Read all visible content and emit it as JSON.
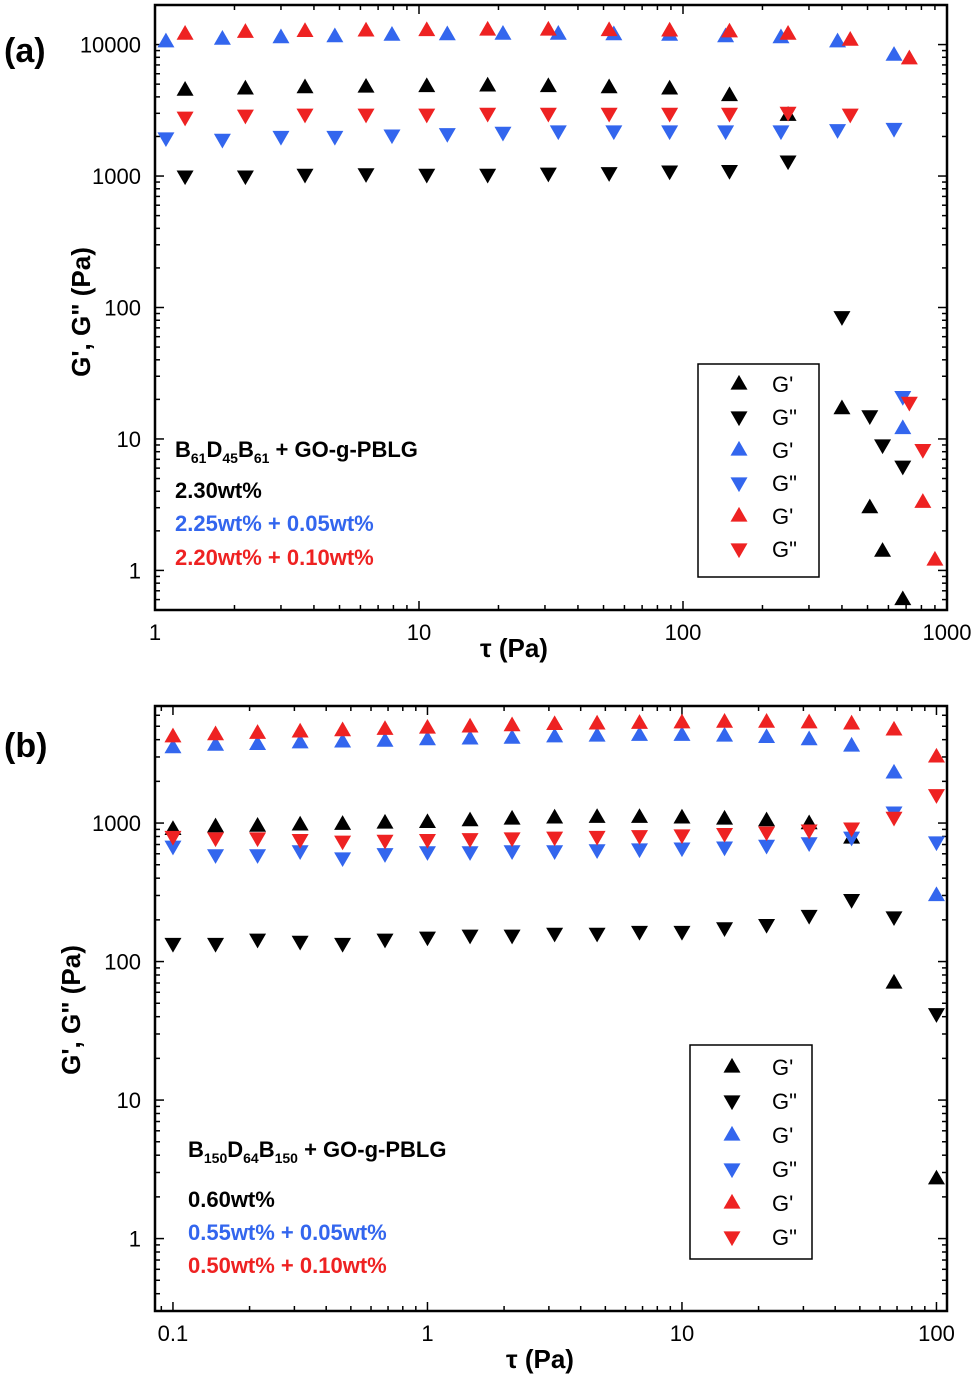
{
  "chart_data": [
    {
      "panel_label": "(a)",
      "type": "scatter",
      "xlabel": "τ (Pa)",
      "ylabel": "G', G\" (Pa)",
      "xscale": "log",
      "yscale": "log",
      "xlim": [
        1,
        1000
      ],
      "ylim": [
        0.5,
        20000
      ],
      "xticks": [
        1,
        10,
        100,
        1000
      ],
      "xtick_labels": [
        "1",
        "10",
        "100",
        "1000"
      ],
      "yticks": [
        1,
        10,
        100,
        1000,
        10000
      ],
      "ytick_labels": [
        "1",
        "10",
        "100",
        "1000",
        "10000"
      ],
      "annotation": {
        "title": "B61D45B61 + GO-g-PBLG",
        "title_parts": [
          {
            "t": "B",
            "sub": false
          },
          {
            "t": "61",
            "sub": true
          },
          {
            "t": "D",
            "sub": false
          },
          {
            "t": "45",
            "sub": true
          },
          {
            "t": "B",
            "sub": false
          },
          {
            "t": "61",
            "sub": true
          },
          {
            "t": " + GO-g-PBLG",
            "sub": false
          }
        ],
        "lines": [
          {
            "text": "2.30wt%",
            "color": "#000000"
          },
          {
            "text": "2.25wt% + 0.05wt%",
            "color": "#3366ee"
          },
          {
            "text": "2.20wt% + 0.10wt%",
            "color": "#ee2222"
          }
        ]
      },
      "legend": {
        "position": "lower-right",
        "entries": [
          {
            "label": "G'",
            "marker": "up",
            "color": "#000000"
          },
          {
            "label": "G\"",
            "marker": "down",
            "color": "#000000"
          },
          {
            "label": "G'",
            "marker": "up",
            "color": "#3366ee"
          },
          {
            "label": "G\"",
            "marker": "down",
            "color": "#3366ee"
          },
          {
            "label": "G'",
            "marker": "up",
            "color": "#ee2222"
          },
          {
            "label": "G\"",
            "marker": "down",
            "color": "#ee2222"
          }
        ]
      },
      "series": [
        {
          "modulus": "G'",
          "marker": "up",
          "color": "#000000",
          "x": [
            1.3,
            2.2,
            3.7,
            6.3,
            10.7,
            18.2,
            30.9,
            52.5,
            89,
            150,
            250,
            400,
            510,
            570,
            680
          ],
          "y": [
            4500,
            4600,
            4700,
            4750,
            4800,
            4850,
            4800,
            4700,
            4600,
            4100,
            2900,
            17,
            3,
            1.4,
            0.6
          ]
        },
        {
          "modulus": "G\"",
          "marker": "down",
          "color": "#000000",
          "x": [
            1.3,
            2.2,
            3.7,
            6.3,
            10.7,
            18.2,
            30.9,
            52.5,
            89,
            150,
            250,
            400,
            510,
            570,
            680
          ],
          "y": [
            1000,
            1000,
            1030,
            1040,
            1030,
            1030,
            1050,
            1060,
            1090,
            1100,
            1300,
            85,
            15,
            9,
            6.2
          ]
        },
        {
          "modulus": "G'",
          "marker": "up",
          "color": "#3366ee",
          "x": [
            1.1,
            1.8,
            3.0,
            4.8,
            7.9,
            12.8,
            20.8,
            33.7,
            54.7,
            89,
            145,
            235,
            385,
            630,
            680
          ],
          "y": [
            10500,
            11000,
            11300,
            11500,
            11800,
            11900,
            12000,
            12000,
            11900,
            11800,
            11500,
            11300,
            10500,
            8300,
            12
          ]
        },
        {
          "modulus": "G\"",
          "marker": "down",
          "color": "#3366ee",
          "x": [
            1.1,
            1.8,
            3.0,
            4.8,
            7.9,
            12.8,
            20.8,
            33.7,
            54.7,
            89,
            145,
            235,
            385,
            630,
            680
          ],
          "y": [
            1950,
            1900,
            2000,
            2000,
            2050,
            2100,
            2150,
            2200,
            2200,
            2200,
            2200,
            2200,
            2250,
            2300,
            21
          ]
        },
        {
          "modulus": "G'",
          "marker": "up",
          "color": "#ee2222",
          "x": [
            1.3,
            2.2,
            3.7,
            6.3,
            10.7,
            18.2,
            30.9,
            52.5,
            89,
            150,
            250,
            430,
            720,
            810,
            900
          ],
          "y": [
            12000,
            12400,
            12600,
            12700,
            12800,
            12900,
            12900,
            12800,
            12700,
            12500,
            12000,
            10800,
            7800,
            3.3,
            1.2
          ]
        },
        {
          "modulus": "G\"",
          "marker": "down",
          "color": "#ee2222",
          "x": [
            1.3,
            2.2,
            3.7,
            6.3,
            10.7,
            18.2,
            30.9,
            52.5,
            89,
            150,
            250,
            430,
            720,
            810
          ],
          "y": [
            2800,
            2900,
            2950,
            2950,
            2950,
            3000,
            3000,
            3000,
            3000,
            3000,
            3050,
            2950,
            19,
            8.3
          ]
        }
      ]
    },
    {
      "panel_label": "(b)",
      "type": "scatter",
      "xlabel": "τ (Pa)",
      "ylabel": "G', G\" (Pa)",
      "xscale": "log",
      "yscale": "log",
      "xlim": [
        0.085,
        110
      ],
      "ylim": [
        0.3,
        7000
      ],
      "xticks": [
        0.1,
        1,
        10,
        100
      ],
      "xtick_labels": [
        "0.1",
        "1",
        "10",
        "100"
      ],
      "yticks": [
        1,
        10,
        100,
        1000
      ],
      "ytick_labels": [
        "1",
        "10",
        "100",
        "1000"
      ],
      "annotation": {
        "title": "B150D64B150 + GO-g-PBLG",
        "title_parts": [
          {
            "t": "B",
            "sub": false
          },
          {
            "t": "150",
            "sub": true
          },
          {
            "t": "D",
            "sub": false
          },
          {
            "t": "64",
            "sub": true
          },
          {
            "t": "B",
            "sub": false
          },
          {
            "t": "150",
            "sub": true
          },
          {
            "t": " + GO-g-PBLG",
            "sub": false
          }
        ],
        "lines": [
          {
            "text": "0.60wt%",
            "color": "#000000"
          },
          {
            "text": "0.55wt% + 0.05wt%",
            "color": "#3366ee"
          },
          {
            "text": "0.50wt% + 0.10wt%",
            "color": "#ee2222"
          }
        ]
      },
      "legend": {
        "position": "lower-right",
        "entries": [
          {
            "label": "G'",
            "marker": "up",
            "color": "#000000"
          },
          {
            "label": "G\"",
            "marker": "down",
            "color": "#000000"
          },
          {
            "label": "G'",
            "marker": "up",
            "color": "#3366ee"
          },
          {
            "label": "G\"",
            "marker": "down",
            "color": "#3366ee"
          },
          {
            "label": "G'",
            "marker": "up",
            "color": "#ee2222"
          },
          {
            "label": "G\"",
            "marker": "down",
            "color": "#ee2222"
          }
        ]
      },
      "series": [
        {
          "modulus": "G'",
          "marker": "up",
          "color": "#000000",
          "x": [
            0.1,
            0.147,
            0.215,
            0.316,
            0.464,
            0.681,
            1.0,
            1.47,
            2.15,
            3.16,
            4.64,
            6.81,
            10,
            14.7,
            21.5,
            31.6,
            46.4,
            68.1,
            100
          ],
          "y": [
            900,
            940,
            950,
            970,
            980,
            1000,
            1010,
            1040,
            1070,
            1090,
            1100,
            1100,
            1090,
            1070,
            1040,
            990,
            780,
            70,
            2.7
          ]
        },
        {
          "modulus": "G\"",
          "marker": "down",
          "color": "#000000",
          "x": [
            0.1,
            0.147,
            0.215,
            0.316,
            0.464,
            0.681,
            1.0,
            1.47,
            2.15,
            3.16,
            4.64,
            6.81,
            10,
            14.7,
            21.5,
            31.6,
            46.4,
            68.1,
            100
          ],
          "y": [
            135,
            135,
            145,
            140,
            135,
            145,
            150,
            155,
            155,
            160,
            160,
            165,
            165,
            175,
            185,
            215,
            280,
            210,
            42
          ]
        },
        {
          "modulus": "G'",
          "marker": "up",
          "color": "#3366ee",
          "x": [
            0.1,
            0.147,
            0.215,
            0.316,
            0.464,
            0.681,
            1.0,
            1.47,
            2.15,
            3.16,
            4.64,
            6.81,
            10,
            14.7,
            21.5,
            31.6,
            46.4,
            68.1,
            100
          ],
          "y": [
            3500,
            3650,
            3700,
            3800,
            3850,
            3900,
            4000,
            4050,
            4100,
            4200,
            4250,
            4300,
            4300,
            4250,
            4150,
            4000,
            3600,
            2300,
            300
          ]
        },
        {
          "modulus": "G\"",
          "marker": "down",
          "color": "#3366ee",
          "x": [
            0.1,
            0.147,
            0.215,
            0.316,
            0.464,
            0.681,
            1.0,
            1.47,
            2.15,
            3.16,
            4.64,
            6.81,
            10,
            14.7,
            21.5,
            31.6,
            46.4,
            68.1,
            100
          ],
          "y": [
            680,
            590,
            590,
            630,
            560,
            600,
            620,
            620,
            630,
            630,
            640,
            650,
            660,
            670,
            690,
            720,
            790,
            1200,
            730
          ]
        },
        {
          "modulus": "G'",
          "marker": "up",
          "color": "#ee2222",
          "x": [
            0.1,
            0.147,
            0.215,
            0.316,
            0.464,
            0.681,
            1.0,
            1.47,
            2.15,
            3.16,
            4.64,
            6.81,
            10,
            14.7,
            21.5,
            31.6,
            46.4,
            68.1,
            100
          ],
          "y": [
            4200,
            4350,
            4450,
            4550,
            4650,
            4750,
            4850,
            4950,
            5050,
            5150,
            5200,
            5250,
            5300,
            5350,
            5350,
            5300,
            5200,
            4700,
            3000
          ]
        },
        {
          "modulus": "G\"",
          "marker": "down",
          "color": "#ee2222",
          "x": [
            0.1,
            0.147,
            0.215,
            0.316,
            0.464,
            0.681,
            1.0,
            1.47,
            2.15,
            3.16,
            4.64,
            6.81,
            10,
            14.7,
            21.5,
            31.6,
            46.4,
            68.1,
            100
          ],
          "y": [
            800,
            780,
            780,
            760,
            740,
            750,
            760,
            770,
            780,
            790,
            800,
            810,
            820,
            840,
            860,
            890,
            920,
            1100,
            1600
          ]
        }
      ]
    }
  ]
}
